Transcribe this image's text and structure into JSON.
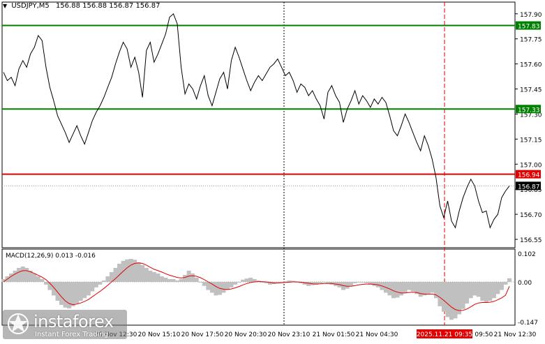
{
  "header": {
    "symbol": "USDJPY,M5",
    "ohlc": "156.88 156.88 156.87 156.87"
  },
  "macd": {
    "label": "MACD(12,26,9) 0.013 -0.016",
    "axis_labels": [
      "0.102",
      "0.00",
      "-0.147"
    ]
  },
  "chart_data": {
    "type": "line",
    "title": "",
    "ylim": [
      156.5,
      157.97
    ],
    "y_ticks": [
      "157.90",
      "157.75",
      "157.60",
      "157.45",
      "157.30",
      "157.15",
      "157.00",
      "156.85",
      "156.70",
      "156.55"
    ],
    "x_labels": [
      "20 Nov 15:10",
      "20 Nov 17:50",
      "20 Nov 20:30",
      "20 Nov 23:10",
      "21 Nov 01:50",
      "21 Nov 04:30",
      "21 Nov 09:50",
      "21 Nov 12:30"
    ],
    "x_label_partial": [
      "20 Nov 12:30"
    ],
    "cursor_time_label": "2025.11.21 09:35",
    "levels": [
      {
        "value": 157.83,
        "label": "157.83",
        "color": "#008000"
      },
      {
        "value": 157.33,
        "label": "157.33",
        "color": "#008000"
      },
      {
        "value": 156.94,
        "label": "156.94",
        "color": "#e00000"
      }
    ],
    "current_price": {
      "value": 156.87,
      "label": "156.87"
    },
    "series": [
      {
        "color": "#000000",
        "values": [
          157.55,
          157.5,
          157.52,
          157.47,
          157.57,
          157.62,
          157.58,
          157.66,
          157.7,
          157.77,
          157.74,
          157.58,
          157.46,
          157.38,
          157.29,
          157.24,
          157.19,
          157.13,
          157.18,
          157.23,
          157.17,
          157.12,
          157.19,
          157.26,
          157.31,
          157.35,
          157.4,
          157.46,
          157.52,
          157.6,
          157.67,
          157.73,
          157.69,
          157.58,
          157.64,
          157.55,
          157.4,
          157.68,
          157.73,
          157.61,
          157.66,
          157.72,
          157.78,
          157.88,
          157.9,
          157.84,
          157.58,
          157.42,
          157.48,
          157.45,
          157.39,
          157.47,
          157.53,
          157.41,
          157.35,
          157.43,
          157.51,
          157.55,
          157.45,
          157.62,
          157.7,
          157.64,
          157.57,
          157.5,
          157.44,
          157.49,
          157.53,
          157.5,
          157.54,
          157.58,
          157.6,
          157.63,
          157.58,
          157.53,
          157.55,
          157.5,
          157.43,
          157.48,
          157.46,
          157.41,
          157.44,
          157.39,
          157.35,
          157.27,
          157.43,
          157.47,
          157.41,
          157.37,
          157.25,
          157.33,
          157.38,
          157.44,
          157.36,
          157.41,
          157.38,
          157.34,
          157.39,
          157.36,
          157.4,
          157.37,
          157.29,
          157.2,
          157.17,
          157.23,
          157.3,
          157.25,
          157.19,
          157.13,
          157.08,
          157.17,
          157.11,
          157.03,
          156.92,
          156.75,
          156.68,
          156.78,
          156.66,
          156.62,
          156.72,
          156.8,
          156.86,
          156.91,
          156.87,
          156.78,
          156.71,
          156.72,
          156.62,
          156.67,
          156.7,
          156.8,
          156.84,
          156.87
        ]
      }
    ],
    "macd_histogram_ylim": [
      -0.147,
      0.102
    ],
    "macd_histogram": [
      0.01,
      0.02,
      0.03,
      0.04,
      0.05,
      0.055,
      0.05,
      0.04,
      0.03,
      0.02,
      0.01,
      -0.01,
      -0.03,
      -0.05,
      -0.07,
      -0.085,
      -0.095,
      -0.098,
      -0.09,
      -0.08,
      -0.07,
      -0.06,
      -0.05,
      -0.035,
      -0.02,
      -0.01,
      0.005,
      0.02,
      0.035,
      0.05,
      0.065,
      0.075,
      0.08,
      0.082,
      0.079,
      0.07,
      0.06,
      0.05,
      0.04,
      0.035,
      0.03,
      0.02,
      0.015,
      0.01,
      0.01,
      0.005,
      0.01,
      0.025,
      0.04,
      0.03,
      0.015,
      0.0,
      -0.015,
      -0.03,
      -0.04,
      -0.05,
      -0.048,
      -0.04,
      -0.03,
      -0.02,
      -0.01,
      0.0,
      0.008,
      0.012,
      0.015,
      0.01,
      0.005,
      0.0,
      -0.005,
      -0.01,
      -0.008,
      -0.005,
      0.0,
      0.002,
      0.005,
      0.004,
      0.0,
      -0.005,
      -0.01,
      -0.015,
      -0.012,
      -0.01,
      -0.005,
      0.0,
      -0.005,
      -0.01,
      -0.015,
      -0.02,
      -0.03,
      -0.025,
      -0.015,
      -0.005,
      0.0,
      -0.002,
      -0.005,
      -0.01,
      -0.015,
      -0.02,
      -0.03,
      -0.04,
      -0.05,
      -0.06,
      -0.058,
      -0.05,
      -0.04,
      -0.03,
      -0.035,
      -0.045,
      -0.055,
      -0.05,
      -0.045,
      -0.04,
      -0.06,
      -0.09,
      -0.11,
      -0.13,
      -0.14,
      -0.135,
      -0.12,
      -0.1,
      -0.08,
      -0.06,
      -0.05,
      -0.055,
      -0.07,
      -0.075,
      -0.07,
      -0.06,
      -0.045,
      -0.03,
      -0.01,
      0.013
    ],
    "macd_signal": [
      0.0,
      0.01,
      0.02,
      0.028,
      0.035,
      0.04,
      0.04,
      0.036,
      0.03,
      0.024,
      0.017,
      0.008,
      -0.005,
      -0.02,
      -0.038,
      -0.055,
      -0.07,
      -0.08,
      -0.084,
      -0.082,
      -0.078,
      -0.072,
      -0.065,
      -0.055,
      -0.045,
      -0.035,
      -0.024,
      -0.012,
      0.0,
      0.012,
      0.025,
      0.038,
      0.05,
      0.06,
      0.066,
      0.068,
      0.066,
      0.06,
      0.052,
      0.045,
      0.04,
      0.035,
      0.029,
      0.024,
      0.02,
      0.016,
      0.014,
      0.016,
      0.021,
      0.022,
      0.02,
      0.015,
      0.008,
      0.0,
      -0.008,
      -0.017,
      -0.024,
      -0.027,
      -0.028,
      -0.026,
      -0.022,
      -0.017,
      -0.011,
      -0.006,
      -0.002,
      0.0,
      0.001,
      0.001,
      0.0,
      -0.002,
      -0.004,
      -0.004,
      -0.003,
      -0.002,
      -0.001,
      0.0,
      0.0,
      -0.001,
      -0.003,
      -0.005,
      -0.007,
      -0.008,
      -0.007,
      -0.006,
      -0.006,
      -0.006,
      -0.008,
      -0.01,
      -0.014,
      -0.016,
      -0.016,
      -0.014,
      -0.011,
      -0.009,
      -0.008,
      -0.008,
      -0.009,
      -0.011,
      -0.015,
      -0.02,
      -0.026,
      -0.033,
      -0.038,
      -0.041,
      -0.041,
      -0.039,
      -0.038,
      -0.039,
      -0.043,
      -0.045,
      -0.046,
      -0.045,
      -0.048,
      -0.057,
      -0.068,
      -0.081,
      -0.093,
      -0.102,
      -0.106,
      -0.105,
      -0.1,
      -0.092,
      -0.083,
      -0.078,
      -0.076,
      -0.076,
      -0.075,
      -0.072,
      -0.066,
      -0.059,
      -0.049,
      -0.016
    ]
  },
  "branding": {
    "logo_text": "instaforex",
    "logo_sub": "Instant Forex Trading"
  }
}
